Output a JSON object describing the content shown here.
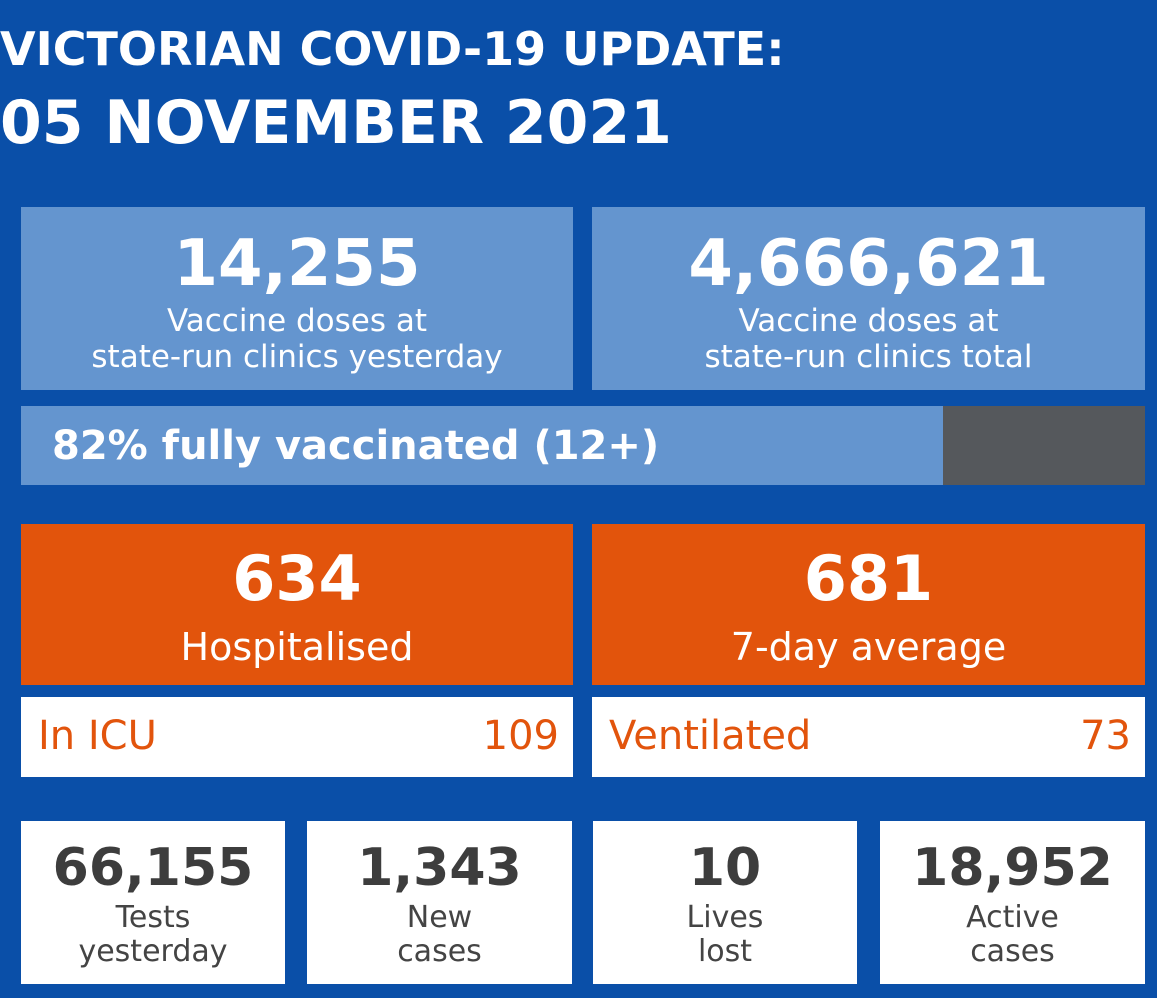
{
  "header": {
    "title": "VICTORIAN COVID-19 UPDATE:",
    "date": "05 NOVEMBER 2021"
  },
  "vaccines": {
    "yesterday": {
      "value": "14,255",
      "label_line1": "Vaccine doses at",
      "label_line2": "state-run clinics yesterday"
    },
    "total": {
      "value": "4,666,621",
      "label_line1": "Vaccine doses at",
      "label_line2": "state-run clinics total"
    }
  },
  "fully_vaccinated": {
    "label": "82% fully vaccinated (12+)",
    "percent": 82
  },
  "hospital": {
    "hospitalised": {
      "value": "634",
      "label": "Hospitalised"
    },
    "average": {
      "value": "681",
      "label": "7-day average"
    },
    "icu": {
      "label": "In ICU",
      "value": "109"
    },
    "ventilated": {
      "label": "Ventilated",
      "value": "73"
    }
  },
  "stats": [
    {
      "value": "66,155",
      "label_line1": "Tests",
      "label_line2": "yesterday"
    },
    {
      "value": "1,343",
      "label_line1": "New",
      "label_line2": "cases"
    },
    {
      "value": "10",
      "label_line1": "Lives",
      "label_line2": "lost"
    },
    {
      "value": "18,952",
      "label_line1": "Active",
      "label_line2": "cases"
    }
  ],
  "colors": {
    "background": "#0a4fa8",
    "light_blue": "#6495cf",
    "orange": "#e2540c",
    "grey": "#55585c"
  }
}
